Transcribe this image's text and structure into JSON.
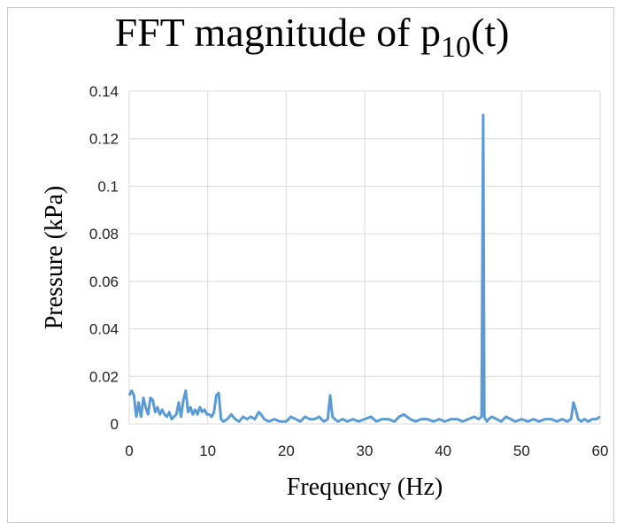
{
  "chart_data": {
    "type": "line",
    "title": "FFT magnitude of",
    "title_subscript_var": "p",
    "title_subscript": "10",
    "title_suffix": "(t)",
    "xlabel": "Frequency  (Hz)",
    "ylabel": "Pressure  (kPa)",
    "xlim": [
      0,
      60
    ],
    "ylim": [
      0,
      0.14
    ],
    "x_ticks": [
      "0",
      "10",
      "20",
      "30",
      "40",
      "50",
      "60"
    ],
    "y_ticks": [
      "0",
      "0.02",
      "0.04",
      "0.06",
      "0.08",
      "0.1",
      "0.12",
      "0.14"
    ],
    "grid": true,
    "line_color": "#5b9bd5",
    "series": [
      {
        "x": [
          0,
          0.3,
          0.6,
          0.9,
          1.2,
          1.5,
          1.8,
          2.1,
          2.4,
          2.7,
          3.0,
          3.3,
          3.6,
          3.9,
          4.2,
          4.5,
          4.8,
          5.1,
          5.4,
          5.7,
          6.0,
          6.3,
          6.6,
          6.9,
          7.2,
          7.5,
          7.8,
          8.1,
          8.4,
          8.7,
          9.0,
          9.3,
          9.6,
          9.9,
          10.2,
          10.5,
          10.8,
          11.1,
          11.4,
          11.7,
          12.0,
          12.5,
          13.0,
          13.5,
          14.0,
          14.5,
          15.0,
          15.5,
          16.0,
          16.5,
          16.8,
          17.2,
          17.8,
          18.5,
          19.2,
          20.0,
          20.6,
          21.2,
          21.8,
          22.4,
          23.0,
          23.6,
          24.2,
          24.8,
          25.3,
          25.6,
          25.9,
          26.2,
          26.6,
          27.2,
          27.8,
          28.5,
          29.2,
          30.0,
          30.8,
          31.5,
          32.2,
          33.0,
          33.8,
          34.4,
          35.0,
          35.8,
          36.5,
          37.2,
          38.0,
          38.8,
          39.5,
          40.2,
          41.0,
          41.8,
          42.5,
          43.2,
          44.0,
          44.5,
          44.9,
          45.1,
          45.25,
          45.4,
          45.6,
          45.8,
          46.2,
          46.8,
          47.4,
          48.0,
          48.6,
          49.2,
          50.0,
          50.8,
          51.5,
          52.2,
          53.0,
          53.8,
          54.5,
          55.2,
          55.8,
          56.3,
          56.6,
          56.9,
          57.2,
          57.6,
          58.0,
          58.5,
          59.0,
          59.5,
          60.0
        ],
        "y": [
          0.012,
          0.014,
          0.012,
          0.003,
          0.009,
          0.003,
          0.011,
          0.007,
          0.004,
          0.011,
          0.01,
          0.005,
          0.007,
          0.004,
          0.006,
          0.004,
          0.003,
          0.005,
          0.002,
          0.003,
          0.004,
          0.009,
          0.003,
          0.01,
          0.014,
          0.005,
          0.007,
          0.004,
          0.006,
          0.004,
          0.007,
          0.005,
          0.006,
          0.004,
          0.004,
          0.003,
          0.005,
          0.012,
          0.013,
          0.002,
          0.001,
          0.002,
          0.004,
          0.002,
          0.001,
          0.003,
          0.002,
          0.003,
          0.002,
          0.005,
          0.004,
          0.002,
          0.001,
          0.002,
          0.001,
          0.001,
          0.003,
          0.002,
          0.001,
          0.003,
          0.002,
          0.002,
          0.003,
          0.001,
          0.002,
          0.012,
          0.003,
          0.002,
          0.001,
          0.002,
          0.001,
          0.002,
          0.001,
          0.002,
          0.003,
          0.001,
          0.002,
          0.002,
          0.001,
          0.003,
          0.004,
          0.002,
          0.001,
          0.002,
          0.002,
          0.001,
          0.002,
          0.001,
          0.002,
          0.002,
          0.001,
          0.002,
          0.003,
          0.002,
          0.003,
          0.13,
          0.003,
          0.002,
          0.001,
          0.002,
          0.003,
          0.002,
          0.001,
          0.003,
          0.002,
          0.001,
          0.002,
          0.001,
          0.002,
          0.001,
          0.002,
          0.002,
          0.001,
          0.002,
          0.001,
          0.002,
          0.009,
          0.006,
          0.002,
          0.001,
          0.002,
          0.001,
          0.002,
          0.002,
          0.003
        ]
      }
    ]
  }
}
